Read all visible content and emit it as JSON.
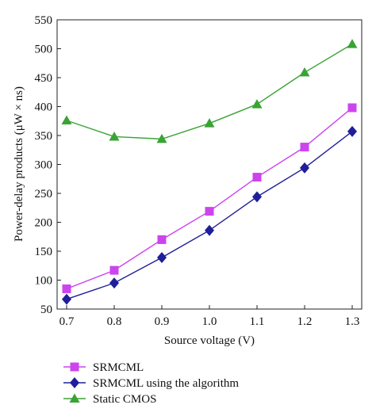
{
  "chart_data": {
    "type": "line",
    "title": "",
    "xlabel": "Source voltage (V)",
    "ylabel": "Power-delay products (μW × ns)",
    "x": [
      0.7,
      0.8,
      0.9,
      1.0,
      1.1,
      1.2,
      1.3
    ],
    "x_tick_labels": [
      "0.7",
      "0.8",
      "0.9",
      "1.0",
      "1.1",
      "1.2",
      "1.3"
    ],
    "xlim": [
      0.68,
      1.32
    ],
    "ylim": [
      50,
      550
    ],
    "y_ticks": [
      50,
      100,
      150,
      200,
      250,
      300,
      350,
      400,
      450,
      500,
      550
    ],
    "grid": false,
    "legend_position": "bottom",
    "series": [
      {
        "name": "SRMCML",
        "values": [
          85,
          117,
          170,
          219,
          278,
          330,
          398
        ],
        "color": "#cc44ee",
        "marker": "square"
      },
      {
        "name": "SRMCML using the algorithm",
        "values": [
          67,
          95,
          139,
          186,
          244,
          294,
          357
        ],
        "color": "#1f1f99",
        "marker": "diamond"
      },
      {
        "name": "Static CMOS",
        "values": [
          376,
          348,
          344,
          371,
          404,
          459,
          508
        ],
        "color": "#3aa335",
        "marker": "triangle"
      }
    ]
  }
}
